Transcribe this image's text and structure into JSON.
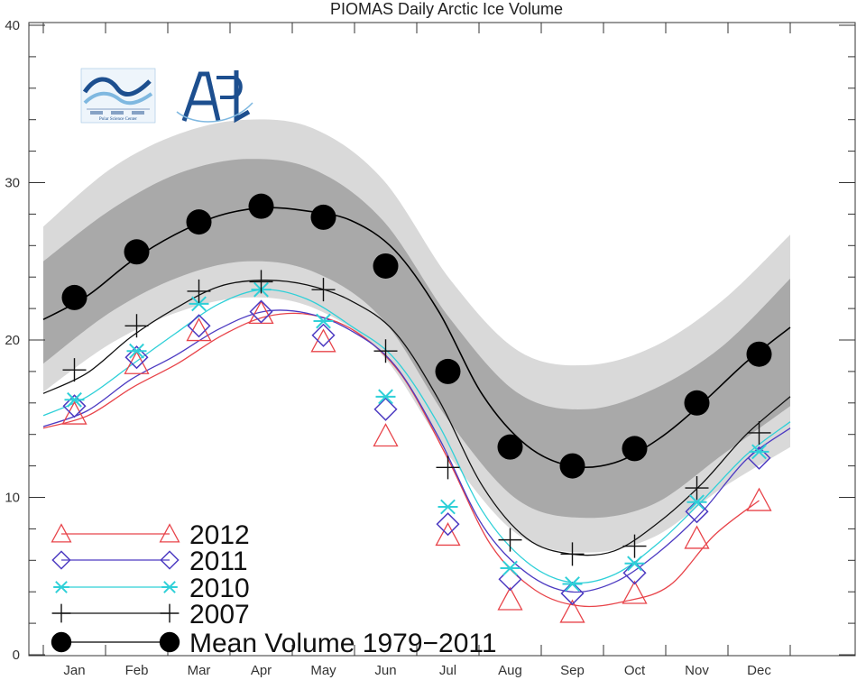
{
  "colors": {
    "band_outer": "#d9d9d9",
    "band_inner": "#a9a9a9",
    "mean": "#000000",
    "y2012": "#e8444a",
    "y2011": "#4d3bc2",
    "y2010": "#2fd0d8",
    "y2007": "#111111",
    "logo": "#1d4f8f",
    "logo_light": "#7fb8e0"
  },
  "logos": {
    "psc": {
      "name": "polar-science-center-logo",
      "text": "Polar Science Center"
    },
    "apl": {
      "name": "apl-logo",
      "text": "APL"
    }
  },
  "chart_data": {
    "type": "line",
    "title": "PIOMAS Daily Arctic Ice Volume",
    "xlabel": "",
    "ylabel": "",
    "ylim": [
      0,
      40
    ],
    "yticks": [
      0,
      10,
      20,
      30,
      40
    ],
    "categories": [
      "Jan",
      "Feb",
      "Mar",
      "Apr",
      "May",
      "Jun",
      "Jul",
      "Aug",
      "Sep",
      "Oct",
      "Nov",
      "Dec"
    ],
    "grid": false,
    "legend": "bottom-left",
    "bands": {
      "outer_upper": [
        27.2,
        30.9,
        33.1,
        34.0,
        33.4,
        30.2,
        23.8,
        19.3,
        18.4,
        19.6,
        22.5,
        26.7
      ],
      "outer_lower": [
        16.7,
        19.8,
        21.8,
        22.7,
        22.0,
        19.0,
        12.5,
        7.6,
        6.5,
        7.5,
        10.6,
        13.2
      ],
      "inner_upper": [
        25.0,
        28.3,
        30.6,
        31.5,
        30.8,
        27.6,
        21.3,
        16.6,
        15.6,
        16.9,
        19.6,
        23.9
      ],
      "inner_lower": [
        18.5,
        21.8,
        24.0,
        25.0,
        24.3,
        21.3,
        14.7,
        9.8,
        8.7,
        9.6,
        12.7,
        15.8
      ]
    },
    "series": [
      {
        "name": "2012",
        "key": "y2012",
        "marker": "triangle",
        "x_end": 11.5,
        "values": [
          15.3,
          18.5,
          20.6,
          21.7,
          19.9,
          13.9,
          7.6,
          3.5,
          2.7,
          3.9,
          7.4,
          9.8
        ],
        "line": [
          14.4,
          15.2,
          17.0,
          18.5,
          20.3,
          21.5,
          21.6,
          20.5,
          17.8,
          12.7,
          7.0,
          4.1,
          3.1,
          3.4,
          4.4,
          7.6,
          9.8
        ]
      },
      {
        "name": "2011",
        "key": "y2011",
        "marker": "diamond",
        "x_end": 12.0,
        "values": [
          15.8,
          18.9,
          20.9,
          21.8,
          20.3,
          15.6,
          8.3,
          4.8,
          3.9,
          5.2,
          9.1,
          12.5
        ],
        "line": [
          14.5,
          15.5,
          17.5,
          19.0,
          20.7,
          21.8,
          21.7,
          20.6,
          18.4,
          13.8,
          8.2,
          5.2,
          4.0,
          4.6,
          6.5,
          9.1,
          12.4,
          14.4
        ]
      },
      {
        "name": "2010",
        "key": "y2010",
        "marker": "asterisk",
        "x_end": 12.0,
        "values": [
          16.2,
          19.3,
          22.3,
          23.2,
          21.2,
          16.4,
          9.4,
          5.5,
          4.5,
          5.8,
          9.7,
          12.9
        ],
        "line": [
          15.2,
          16.4,
          18.4,
          20.4,
          22.3,
          23.2,
          22.6,
          20.9,
          18.8,
          14.6,
          9.1,
          5.9,
          4.6,
          5.1,
          7.1,
          9.8,
          12.7,
          14.8
        ]
      },
      {
        "name": "2007",
        "key": "y2007",
        "marker": "plus",
        "x_end": 12.0,
        "values": [
          18.1,
          20.9,
          23.1,
          23.7,
          23.2,
          19.3,
          11.9,
          7.3,
          6.4,
          6.9,
          10.6,
          14.1
        ],
        "line": [
          16.6,
          17.9,
          20.2,
          22.0,
          23.4,
          23.8,
          23.5,
          22.5,
          20.5,
          16.2,
          10.7,
          7.4,
          6.4,
          6.6,
          8.4,
          10.9,
          14.0,
          16.4
        ]
      },
      {
        "name": "Mean Volume 1979-2011",
        "key": "mean",
        "marker": "circle",
        "x_end": 12.0,
        "values": [
          22.7,
          25.6,
          27.5,
          28.5,
          27.8,
          24.7,
          18.0,
          13.2,
          12.0,
          13.1,
          16.0,
          19.1
        ],
        "line": [
          21.3,
          22.8,
          25.0,
          26.7,
          27.9,
          28.4,
          28.2,
          27.6,
          25.7,
          21.8,
          16.5,
          13.3,
          12.0,
          12.2,
          13.7,
          16.0,
          18.6,
          20.8
        ]
      }
    ],
    "legend_entries": [
      {
        "label": "2012",
        "key": "y2012",
        "marker": "triangle"
      },
      {
        "label": "2011",
        "key": "y2011",
        "marker": "diamond"
      },
      {
        "label": "2010",
        "key": "y2010",
        "marker": "asterisk"
      },
      {
        "label": "2007",
        "key": "y2007",
        "marker": "plus"
      },
      {
        "label": "Mean Volume 1979−2011",
        "key": "mean",
        "marker": "circle"
      }
    ]
  }
}
